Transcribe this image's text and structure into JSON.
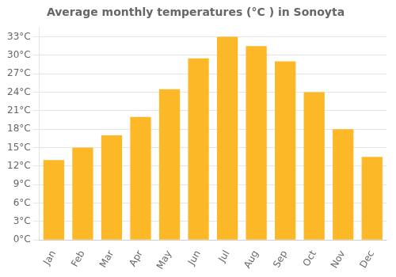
{
  "chart_data": {
    "type": "bar",
    "title": "Average monthly temperatures (°C ) in Sonoyta",
    "categories": [
      "Jan",
      "Feb",
      "Mar",
      "Apr",
      "May",
      "Jun",
      "Jul",
      "Aug",
      "Sep",
      "Oct",
      "Nov",
      "Dec"
    ],
    "values": [
      13.0,
      15.0,
      17.0,
      20.0,
      24.5,
      29.5,
      33.0,
      31.5,
      29.0,
      24.0,
      18.0,
      13.5
    ],
    "color": "#FDB827",
    "ylim": [
      0,
      34.5
    ],
    "yticks": [
      {
        "value": 0,
        "label": "0°C"
      },
      {
        "value": 3,
        "label": "3°C"
      },
      {
        "value": 6,
        "label": "6°C"
      },
      {
        "value": 9,
        "label": "9°C"
      },
      {
        "value": 12,
        "label": "12°C"
      },
      {
        "value": 15,
        "label": "15°C"
      },
      {
        "value": 18,
        "label": "18°C"
      },
      {
        "value": 21,
        "label": "21°C"
      },
      {
        "value": 24,
        "label": "24°C"
      },
      {
        "value": 27,
        "label": "27°C"
      },
      {
        "value": 30,
        "label": "30°C"
      },
      {
        "value": 33,
        "label": "33°C"
      }
    ],
    "grid": true
  }
}
